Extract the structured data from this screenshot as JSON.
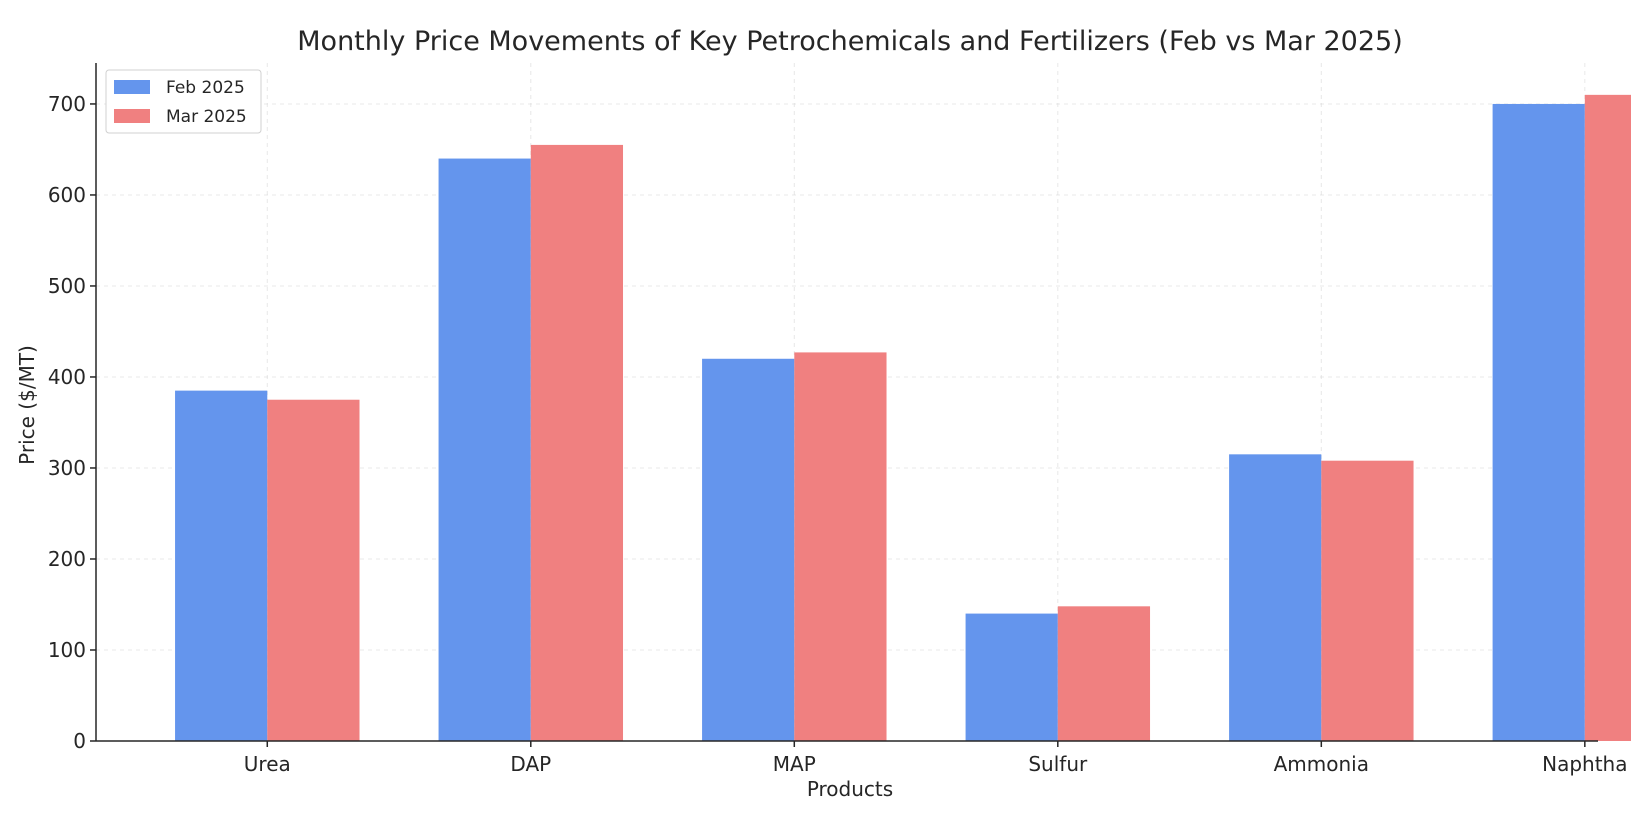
{
  "chart_data": {
    "type": "bar",
    "title": "Monthly Price Movements of Key Petrochemicals and Fertilizers (Feb vs Mar 2025)",
    "xlabel": "Products",
    "ylabel": "Price ($/MT)",
    "categories": [
      "Urea",
      "DAP",
      "MAP",
      "Sulfur",
      "Ammonia",
      "Naphtha"
    ],
    "series": [
      {
        "name": "Feb 2025",
        "color": "#6495ED",
        "values": [
          385,
          640,
          420,
          140,
          315,
          700
        ]
      },
      {
        "name": "Mar 2025",
        "color": "#F08080",
        "values": [
          375,
          655,
          427,
          148,
          308,
          710
        ]
      }
    ],
    "ylim": [
      0,
      745
    ],
    "yticks": [
      0,
      100,
      200,
      300,
      400,
      500,
      600,
      700
    ],
    "grid": true,
    "legend_position": "top-left"
  }
}
